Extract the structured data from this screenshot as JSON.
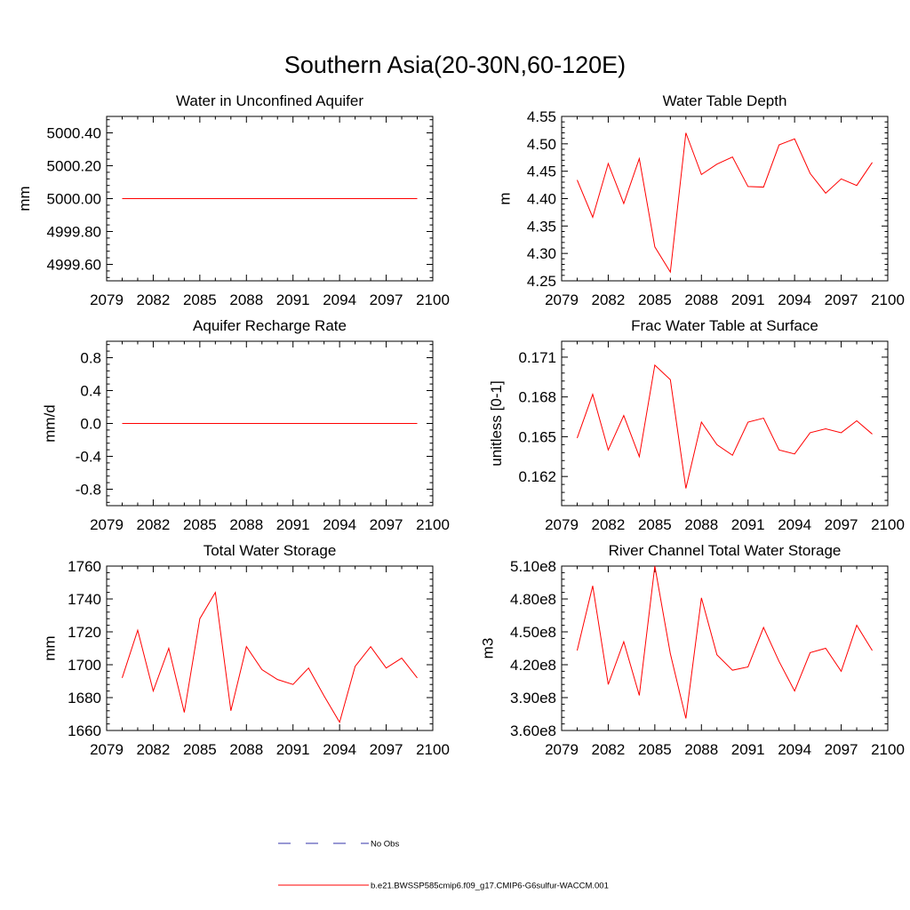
{
  "figure": {
    "title": "Southern Asia(20-30N,60-120E)",
    "legend": {
      "obs_label": "No Obs",
      "obs_color": "#3333aa",
      "model_label": "b.e21.BWSSP585cmip6.f09_g17.CMIP6-G6sulfur-WACCM.001",
      "model_color": "#ff0000"
    }
  },
  "chart_data": [
    {
      "type": "line",
      "title": "Water in Unconfined Aquifer",
      "ylabel": "mm",
      "xlim": [
        2079,
        2100
      ],
      "xticks": [
        2079,
        2082,
        2085,
        2088,
        2091,
        2094,
        2097,
        2100
      ],
      "ylim": [
        4999.5,
        5000.5
      ],
      "yticks": [
        4999.6,
        4999.8,
        5000.0,
        5000.2,
        5000.4
      ],
      "ytick_labels": [
        "4999.60",
        "4999.80",
        "5000.00",
        "5000.20",
        "5000.40"
      ],
      "x": [
        2080,
        2081,
        2082,
        2083,
        2084,
        2085,
        2086,
        2087,
        2088,
        2089,
        2090,
        2091,
        2092,
        2093,
        2094,
        2095,
        2096,
        2097,
        2098,
        2099
      ],
      "series": [
        {
          "values": [
            5000,
            5000,
            5000,
            5000,
            5000,
            5000,
            5000,
            5000,
            5000,
            5000,
            5000,
            5000,
            5000,
            5000,
            5000,
            5000,
            5000,
            5000,
            5000,
            5000
          ],
          "color": "#ff0000"
        }
      ]
    },
    {
      "type": "line",
      "title": "Water Table Depth",
      "ylabel": "m",
      "xlim": [
        2079,
        2100
      ],
      "xticks": [
        2079,
        2082,
        2085,
        2088,
        2091,
        2094,
        2097,
        2100
      ],
      "ylim": [
        4.25,
        4.55
      ],
      "yticks": [
        4.25,
        4.3,
        4.35,
        4.4,
        4.45,
        4.5,
        4.55
      ],
      "ytick_labels": [
        "4.25",
        "4.30",
        "4.35",
        "4.40",
        "4.45",
        "4.50",
        "4.55"
      ],
      "x": [
        2080,
        2081,
        2082,
        2083,
        2084,
        2085,
        2086,
        2087,
        2088,
        2089,
        2090,
        2091,
        2092,
        2093,
        2094,
        2095,
        2096,
        2097,
        2098,
        2099
      ],
      "series": [
        {
          "values": [
            4.434,
            4.366,
            4.464,
            4.391,
            4.473,
            4.312,
            4.266,
            4.52,
            4.444,
            4.463,
            4.476,
            4.422,
            4.421,
            4.498,
            4.509,
            4.446,
            4.41,
            4.436,
            4.424,
            4.466
          ],
          "color": "#ff0000"
        }
      ]
    },
    {
      "type": "line",
      "title": "Aquifer Recharge Rate",
      "ylabel": "mm/d",
      "xlim": [
        2079,
        2100
      ],
      "xticks": [
        2079,
        2082,
        2085,
        2088,
        2091,
        2094,
        2097,
        2100
      ],
      "ylim": [
        -1.0,
        1.0
      ],
      "yticks": [
        -0.8,
        -0.4,
        0.0,
        0.4,
        0.8
      ],
      "ytick_labels": [
        "-0.8",
        "-0.4",
        "0.0",
        "0.4",
        "0.8"
      ],
      "x": [
        2080,
        2081,
        2082,
        2083,
        2084,
        2085,
        2086,
        2087,
        2088,
        2089,
        2090,
        2091,
        2092,
        2093,
        2094,
        2095,
        2096,
        2097,
        2098,
        2099
      ],
      "series": [
        {
          "values": [
            0,
            0,
            0,
            0,
            0,
            0,
            0,
            0,
            0,
            0,
            0,
            0,
            0,
            0,
            0,
            0,
            0,
            0,
            0,
            0
          ],
          "color": "#ff0000"
        }
      ]
    },
    {
      "type": "line",
      "title": "Frac Water Table at Surface",
      "ylabel": "unitless [0-1]",
      "xlim": [
        2079,
        2100
      ],
      "xticks": [
        2079,
        2082,
        2085,
        2088,
        2091,
        2094,
        2097,
        2100
      ],
      "ylim": [
        0.1598,
        0.1722
      ],
      "yticks": [
        0.162,
        0.165,
        0.168,
        0.171
      ],
      "ytick_labels": [
        "0.162",
        "0.165",
        "0.168",
        "0.171"
      ],
      "x": [
        2080,
        2081,
        2082,
        2083,
        2084,
        2085,
        2086,
        2087,
        2088,
        2089,
        2090,
        2091,
        2092,
        2093,
        2094,
        2095,
        2096,
        2097,
        2098,
        2099
      ],
      "series": [
        {
          "values": [
            0.1649,
            0.1682,
            0.164,
            0.1666,
            0.1635,
            0.1704,
            0.1693,
            0.1611,
            0.1661,
            0.1644,
            0.1636,
            0.1661,
            0.1664,
            0.164,
            0.1637,
            0.1653,
            0.1656,
            0.1653,
            0.1662,
            0.1652
          ],
          "color": "#ff0000"
        }
      ]
    },
    {
      "type": "line",
      "title": "Total Water Storage",
      "ylabel": "mm",
      "xlim": [
        2079,
        2100
      ],
      "xticks": [
        2079,
        2082,
        2085,
        2088,
        2091,
        2094,
        2097,
        2100
      ],
      "ylim": [
        1660,
        1760
      ],
      "yticks": [
        1660,
        1680,
        1700,
        1720,
        1740,
        1760
      ],
      "ytick_labels": [
        "1660",
        "1680",
        "1700",
        "1720",
        "1740",
        "1760"
      ],
      "x": [
        2080,
        2081,
        2082,
        2083,
        2084,
        2085,
        2086,
        2087,
        2088,
        2089,
        2090,
        2091,
        2092,
        2093,
        2094,
        2095,
        2096,
        2097,
        2098,
        2099
      ],
      "series": [
        {
          "values": [
            1692,
            1721,
            1684,
            1710,
            1671,
            1728,
            1744,
            1672,
            1711,
            1697,
            1691,
            1688,
            1698,
            1681,
            1665,
            1699,
            1711,
            1698,
            1704,
            1692
          ],
          "color": "#ff0000"
        }
      ]
    },
    {
      "type": "line",
      "title": "River Channel Total Water Storage",
      "ylabel": "m3",
      "xlim": [
        2079,
        2100
      ],
      "xticks": [
        2079,
        2082,
        2085,
        2088,
        2091,
        2094,
        2097,
        2100
      ],
      "ylim": [
        360000000.0,
        510000000.0
      ],
      "yticks": [
        360000000.0,
        390000000.0,
        420000000.0,
        450000000.0,
        480000000.0,
        510000000.0
      ],
      "ytick_labels": [
        "3.60e8",
        "3.90e8",
        "4.20e8",
        "4.50e8",
        "4.80e8",
        "5.10e8"
      ],
      "x": [
        2080,
        2081,
        2082,
        2083,
        2084,
        2085,
        2086,
        2087,
        2088,
        2089,
        2090,
        2091,
        2092,
        2093,
        2094,
        2095,
        2096,
        2097,
        2098,
        2099
      ],
      "series": [
        {
          "values": [
            433000000.0,
            492000000.0,
            402000000.0,
            441000000.0,
            392000000.0,
            510000000.0,
            430000000.0,
            371000000.0,
            481000000.0,
            429000000.0,
            415000000.0,
            418000000.0,
            454000000.0,
            423000000.0,
            396000000.0,
            431000000.0,
            435000000.0,
            414000000.0,
            456000000.0,
            433000000.0
          ],
          "color": "#ff0000"
        }
      ]
    }
  ]
}
